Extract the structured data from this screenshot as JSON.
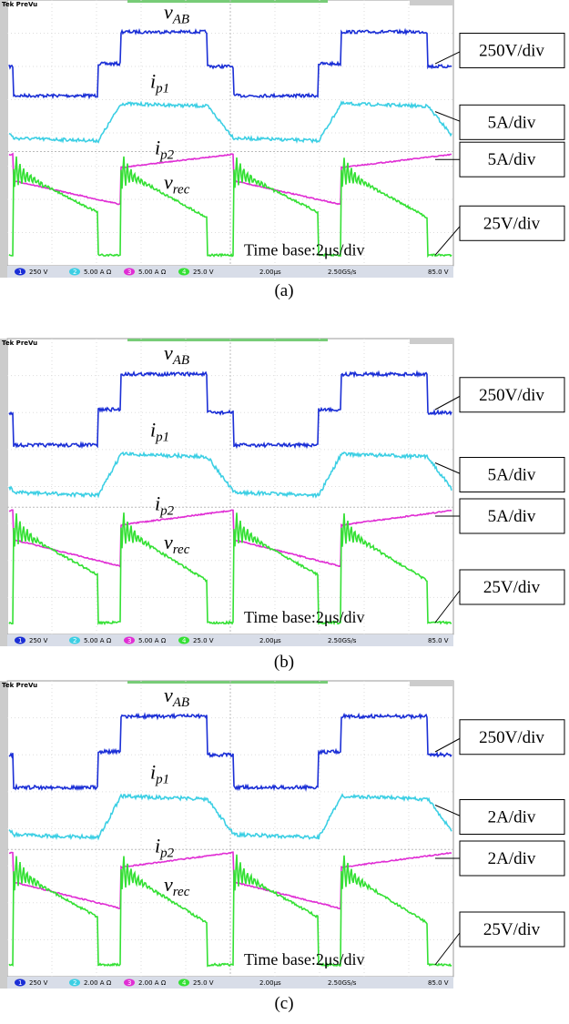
{
  "panels": [
    {
      "scope_header": "Tek PreVu",
      "waveform_labels": [
        {
          "symbol": "v",
          "subscript": "AB"
        },
        {
          "symbol": "i",
          "subscript": "p1"
        },
        {
          "symbol": "i",
          "subscript": "p2"
        },
        {
          "symbol": "v",
          "subscript": "rec"
        }
      ],
      "scale_labels": [
        "250V/div",
        "5A/div",
        "5A/div",
        "25V/div"
      ],
      "time_base": "Time base:2μs/div",
      "status_bar": {
        "channels": [
          {
            "number": 1,
            "setting": "250 V"
          },
          {
            "number": 2,
            "setting": "5.00 A Ω"
          },
          {
            "number": 3,
            "setting": "5.00 A Ω"
          },
          {
            "number": 4,
            "setting": "25.0 V"
          }
        ],
        "timebase": "2.00μs",
        "sample_rate": "2.50GS/s",
        "trigger": "85.0 V"
      },
      "caption": "(a)"
    },
    {
      "scope_header": "Tek PreVu",
      "waveform_labels": [
        {
          "symbol": "v",
          "subscript": "AB"
        },
        {
          "symbol": "i",
          "subscript": "p1"
        },
        {
          "symbol": "i",
          "subscript": "p2"
        },
        {
          "symbol": "v",
          "subscript": "rec"
        }
      ],
      "scale_labels": [
        "250V/div",
        "5A/div",
        "5A/div",
        "25V/div"
      ],
      "time_base": "Time base:2μs/div",
      "status_bar": {
        "channels": [
          {
            "number": 1,
            "setting": "250 V"
          },
          {
            "number": 2,
            "setting": "5.00 A Ω"
          },
          {
            "number": 3,
            "setting": "5.00 A Ω"
          },
          {
            "number": 4,
            "setting": "25.0 V"
          }
        ],
        "timebase": "2.00μs",
        "sample_rate": "2.50GS/s",
        "trigger": "85.0 V"
      },
      "caption": "(b)"
    },
    {
      "scope_header": "Tek PreVu",
      "waveform_labels": [
        {
          "symbol": "v",
          "subscript": "AB"
        },
        {
          "symbol": "i",
          "subscript": "p1"
        },
        {
          "symbol": "i",
          "subscript": "p2"
        },
        {
          "symbol": "v",
          "subscript": "rec"
        }
      ],
      "scale_labels": [
        "250V/div",
        "2A/div",
        "2A/div",
        "25V/div"
      ],
      "time_base": "Time base:2μs/div",
      "status_bar": {
        "channels": [
          {
            "number": 1,
            "setting": "250 V"
          },
          {
            "number": 2,
            "setting": "2.00 A Ω"
          },
          {
            "number": 3,
            "setting": "2.00 A Ω"
          },
          {
            "number": 4,
            "setting": "25.0 V"
          }
        ],
        "timebase": "2.00μs",
        "sample_rate": "2.50GS/s",
        "trigger": "85.0 V"
      },
      "caption": "(c)"
    }
  ]
}
